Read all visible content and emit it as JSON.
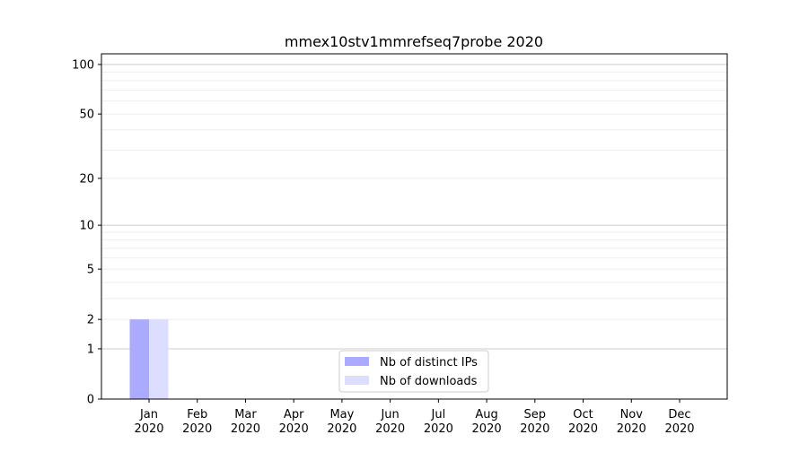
{
  "chart_data": {
    "type": "bar",
    "title": "mmex10stv1mmrefseq7probe 2020",
    "xlabel": "",
    "ylabel": "",
    "yscale": "log(1+y)",
    "ylim": [
      0,
      116
    ],
    "yticks": [
      0,
      1,
      2,
      5,
      10,
      20,
      50,
      100
    ],
    "grid": true,
    "legend_position": "bottom-center",
    "categories": [
      "Jan\n2020",
      "Feb\n2020",
      "Mar\n2020",
      "Apr\n2020",
      "May\n2020",
      "Jun\n2020",
      "Jul\n2020",
      "Aug\n2020",
      "Sep\n2020",
      "Oct\n2020",
      "Nov\n2020",
      "Dec\n2020"
    ],
    "series": [
      {
        "name": "Nb of distinct IPs",
        "color": "#aaaaff",
        "values": [
          2,
          0,
          0,
          0,
          0,
          0,
          0,
          0,
          0,
          0,
          0,
          0
        ]
      },
      {
        "name": "Nb of downloads",
        "color": "#ddddff",
        "values": [
          2,
          0,
          0,
          0,
          0,
          0,
          0,
          0,
          0,
          0,
          0,
          0
        ]
      }
    ]
  }
}
